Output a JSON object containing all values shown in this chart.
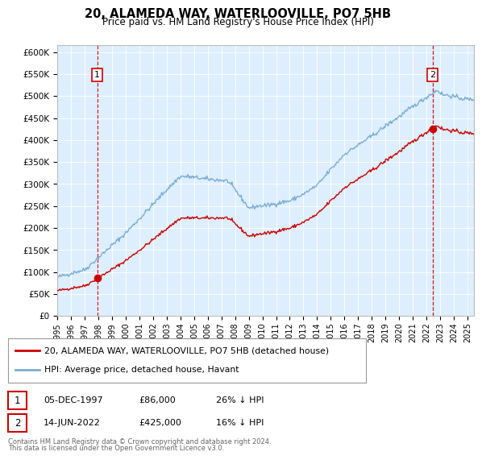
{
  "title": "20, ALAMEDA WAY, WATERLOOVILLE, PO7 5HB",
  "subtitle": "Price paid vs. HM Land Registry's House Price Index (HPI)",
  "ylabel_ticks": [
    "£0",
    "£50K",
    "£100K",
    "£150K",
    "£200K",
    "£250K",
    "£300K",
    "£350K",
    "£400K",
    "£450K",
    "£500K",
    "£550K",
    "£600K"
  ],
  "ytick_values": [
    0,
    50000,
    100000,
    150000,
    200000,
    250000,
    300000,
    350000,
    400000,
    450000,
    500000,
    550000,
    600000
  ],
  "hpi_color": "#7aadd4",
  "price_color": "#cc0000",
  "background_color": "#ddeeff",
  "sale1_year": 1997.92,
  "sale1_price": 86000,
  "sale2_year": 2022.45,
  "sale2_price": 425000,
  "legend_line1": "20, ALAMEDA WAY, WATERLOOVILLE, PO7 5HB (detached house)",
  "legend_line2": "HPI: Average price, detached house, Havant",
  "footer": "Contains HM Land Registry data © Crown copyright and database right 2024.\nThis data is licensed under the Open Government Licence v3.0.",
  "xmin": 1995.0,
  "xmax": 2025.5
}
